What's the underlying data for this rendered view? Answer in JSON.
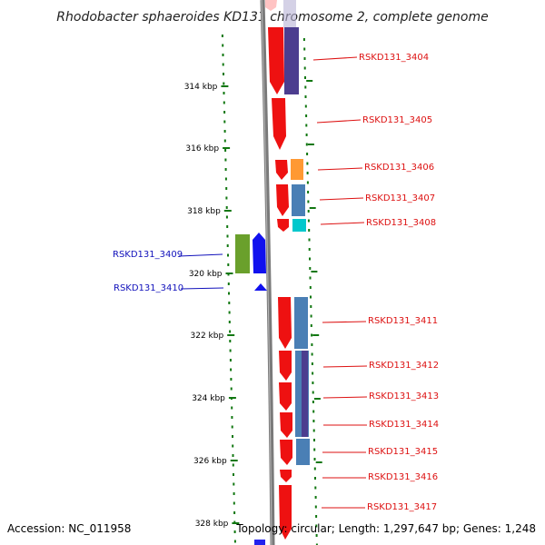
{
  "title": "Rhodobacter sphaeroides KD131 chromosome 2, complete genome",
  "colors": {
    "forward_label": "#dd1111",
    "reverse_label": "#1111bb",
    "backbone": "#7a7a7a",
    "tick": "#117711"
  },
  "axis_ticks": [
    "314 kbp",
    "316 kbp",
    "318 kbp",
    "320 kbp",
    "322 kbp",
    "324 kbp",
    "326 kbp",
    "328 kbp"
  ],
  "genes": [
    {
      "label": "RSKD131_3404",
      "strand": "forward"
    },
    {
      "label": "RSKD131_3405",
      "strand": "forward"
    },
    {
      "label": "RSKD131_3406",
      "strand": "forward"
    },
    {
      "label": "RSKD131_3407",
      "strand": "forward"
    },
    {
      "label": "RSKD131_3408",
      "strand": "forward"
    },
    {
      "label": "RSKD131_3409",
      "strand": "reverse"
    },
    {
      "label": "RSKD131_3410",
      "strand": "reverse"
    },
    {
      "label": "RSKD131_3411",
      "strand": "forward"
    },
    {
      "label": "RSKD131_3412",
      "strand": "forward"
    },
    {
      "label": "RSKD131_3413",
      "strand": "forward"
    },
    {
      "label": "RSKD131_3414",
      "strand": "forward"
    },
    {
      "label": "RSKD131_3415",
      "strand": "forward"
    },
    {
      "label": "RSKD131_3416",
      "strand": "forward"
    },
    {
      "label": "RSKD131_3417",
      "strand": "forward"
    }
  ],
  "footer": {
    "accession": "Accession: NC_011958",
    "summary": "Topology: circular; Length: 1,297,647 bp; Genes: 1,248"
  }
}
